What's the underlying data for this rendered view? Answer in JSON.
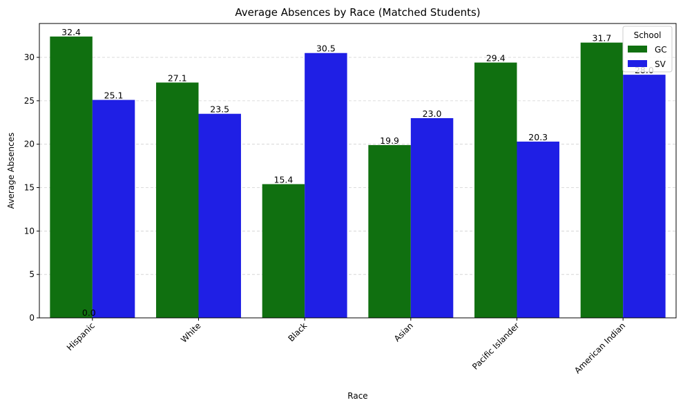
{
  "chart_data": {
    "type": "bar",
    "title": "Average Absences by Race (Matched Students)",
    "xlabel": "Race",
    "ylabel": "Average Absences",
    "ylim": [
      0,
      33.9
    ],
    "yticks": [
      0,
      5,
      10,
      15,
      20,
      25,
      30
    ],
    "grid": "y-dashed",
    "categories": [
      "Hispanic",
      "White",
      "Black",
      "Asian",
      "Pacific Islander",
      "American Indian"
    ],
    "series": [
      {
        "name": "GC",
        "color": "#107010",
        "values": [
          32.4,
          27.1,
          15.4,
          19.9,
          29.4,
          31.7
        ],
        "labels": [
          "32.4",
          "27.1",
          "15.4",
          "19.9",
          "29.4",
          "31.7"
        ]
      },
      {
        "name": "SV",
        "color": "#1f1fe5",
        "values": [
          25.1,
          23.5,
          30.5,
          23.0,
          20.3,
          28.0
        ],
        "labels": [
          "25.1",
          "23.5",
          "30.5",
          "23.0",
          "20.3",
          "28.0"
        ]
      }
    ],
    "extra_annotations": [
      {
        "text": "0.0",
        "category": "Hispanic",
        "y": 0
      }
    ],
    "legend": {
      "title": "School",
      "placement": "top-right"
    }
  }
}
